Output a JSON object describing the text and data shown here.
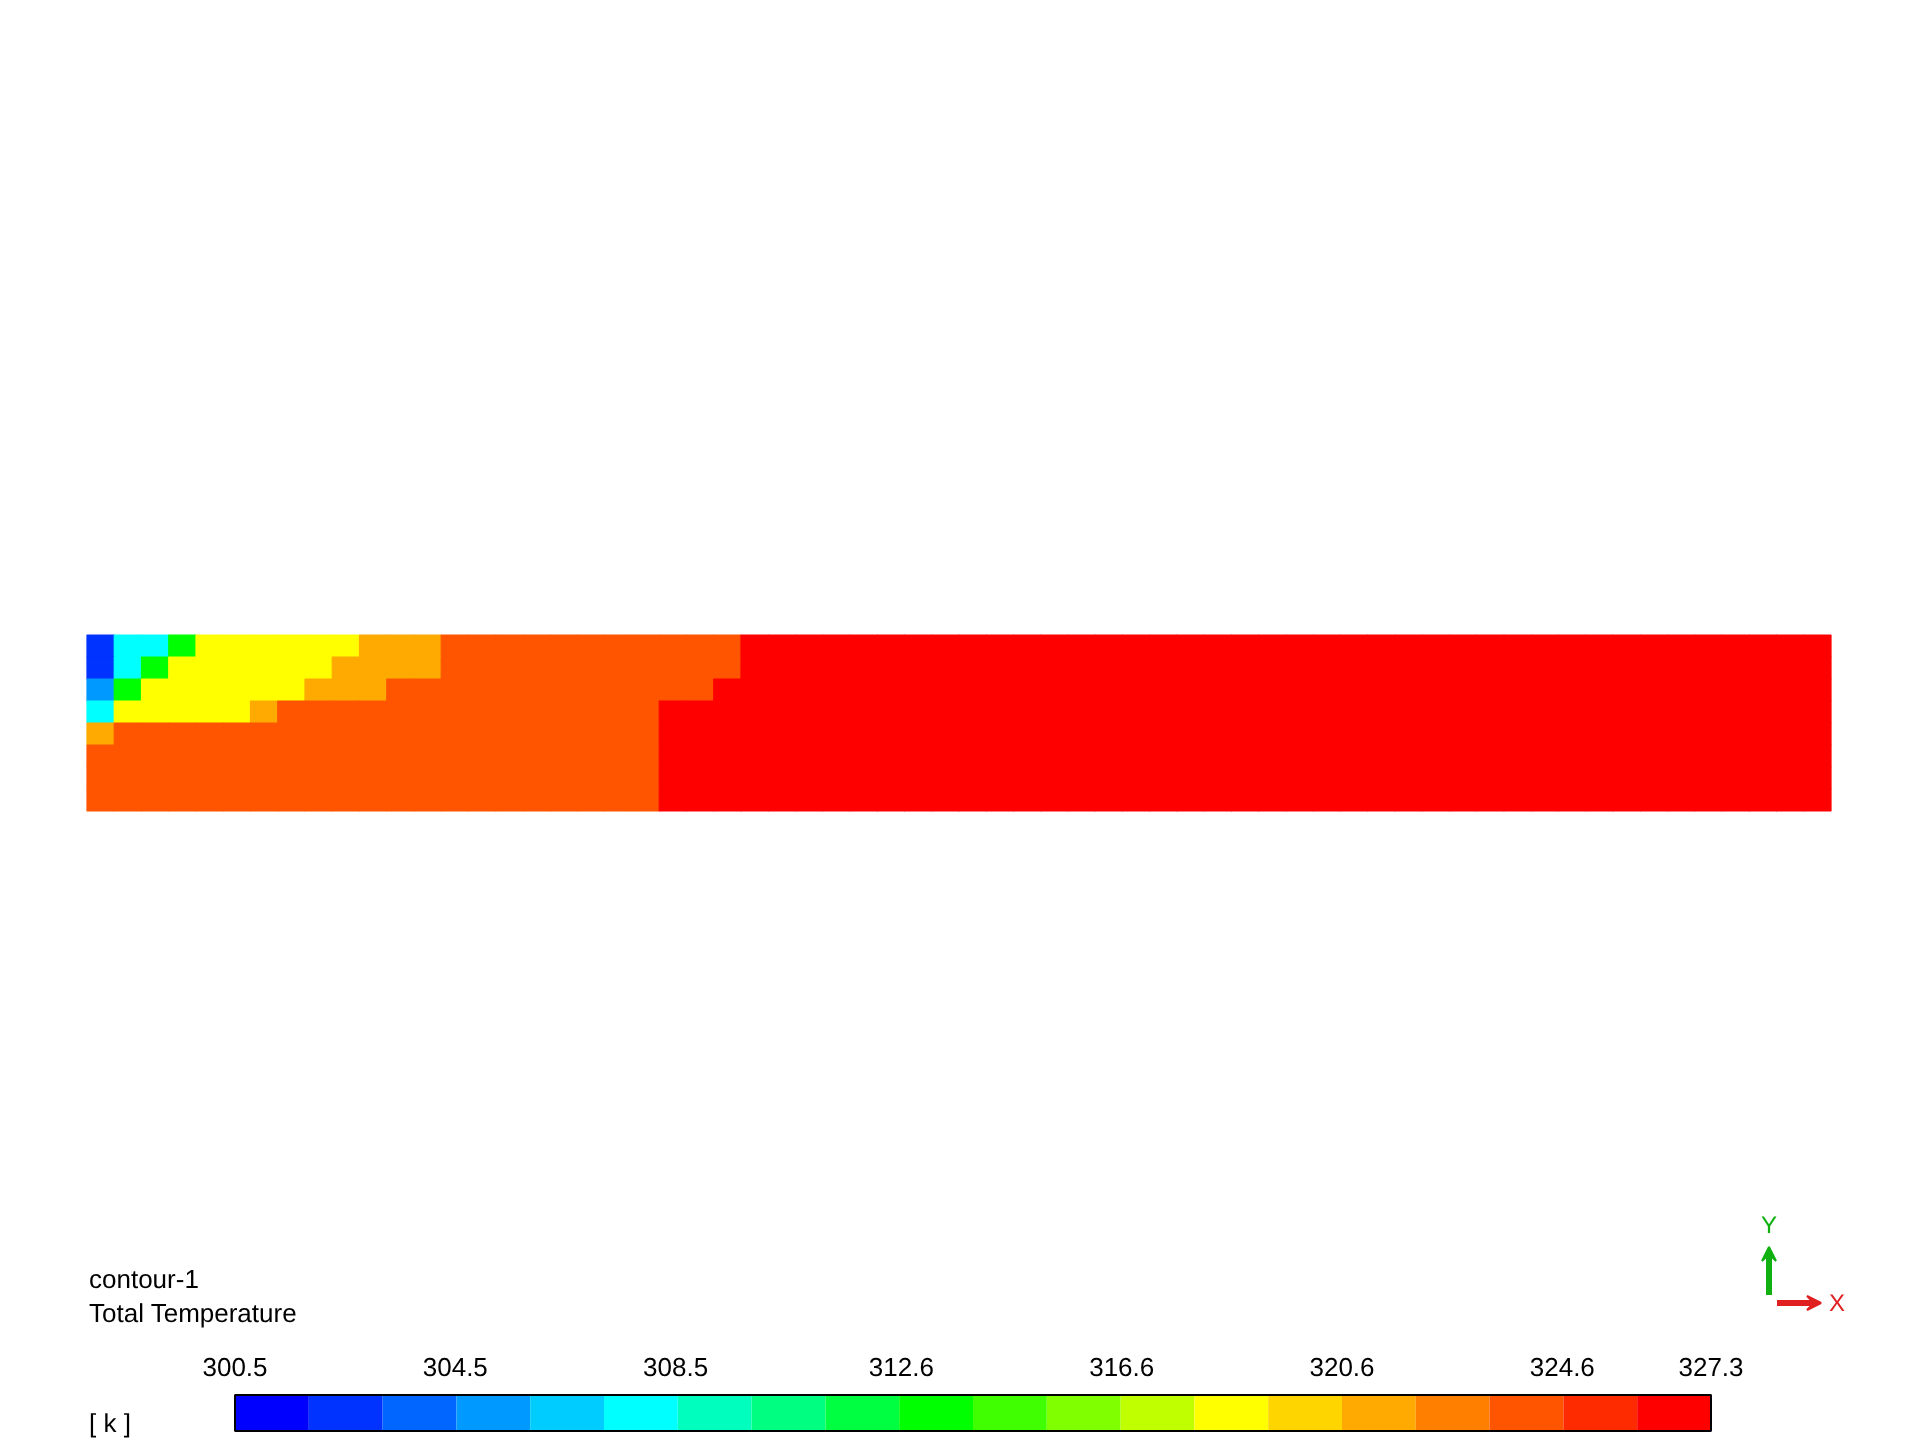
{
  "chart_data": {
    "type": "heatmap",
    "title": "contour-1",
    "subtitle": "Total Temperature",
    "clabel": "[ k ]",
    "annotations": [
      "X",
      "Y"
    ],
    "tick_labels": false,
    "categories": [
      null,
      null,
      null,
      null,
      null,
      null,
      null,
      null,
      null,
      null,
      null,
      null,
      null,
      null,
      null,
      null,
      null,
      null,
      null,
      null,
      null,
      null,
      null,
      null,
      null,
      null,
      null,
      null,
      null,
      null,
      null,
      null,
      null,
      null,
      null,
      null,
      null,
      null,
      null,
      null,
      null,
      null,
      null,
      null,
      null,
      null,
      null,
      null,
      null,
      null,
      null,
      null,
      null,
      null,
      null,
      null,
      null,
      null,
      null,
      null,
      null,
      null,
      null,
      null
    ],
    "y_categories": [
      null,
      null,
      null,
      null,
      null,
      null,
      null,
      null
    ],
    "cells": [
      [
        302.5,
        307.9,
        307.9,
        313.2,
        318.6,
        318.6,
        318.6,
        318.6,
        318.6,
        318.6,
        321.3,
        321.3,
        321.3,
        324.0,
        324.0,
        324.0,
        324.0,
        324.0,
        324.0,
        324.0,
        324.0,
        324.0,
        324.0,
        324.0,
        326.6,
        326.6,
        326.6,
        326.6,
        326.6,
        326.6,
        326.6,
        326.6,
        326.6,
        326.6,
        326.6,
        326.6,
        326.6,
        326.6,
        326.6,
        326.6,
        326.6,
        326.6,
        326.6,
        326.6,
        326.6,
        326.6,
        326.6,
        326.6,
        326.6,
        326.6,
        326.6,
        326.6,
        326.6,
        326.6,
        326.6,
        326.6,
        326.6,
        326.6,
        326.6,
        326.6,
        326.6,
        326.6,
        326.6,
        326.6
      ],
      [
        302.5,
        307.9,
        313.2,
        318.6,
        318.6,
        318.6,
        318.6,
        318.6,
        318.6,
        321.3,
        321.3,
        321.3,
        321.3,
        324.0,
        324.0,
        324.0,
        324.0,
        324.0,
        324.0,
        324.0,
        324.0,
        324.0,
        324.0,
        324.0,
        326.6,
        326.6,
        326.6,
        326.6,
        326.6,
        326.6,
        326.6,
        326.6,
        326.6,
        326.6,
        326.6,
        326.6,
        326.6,
        326.6,
        326.6,
        326.6,
        326.6,
        326.6,
        326.6,
        326.6,
        326.6,
        326.6,
        326.6,
        326.6,
        326.6,
        326.6,
        326.6,
        326.6,
        326.6,
        326.6,
        326.6,
        326.6,
        326.6,
        326.6,
        326.6,
        326.6,
        326.6,
        326.6,
        326.6,
        326.6
      ],
      [
        305.2,
        313.2,
        318.6,
        318.6,
        318.6,
        318.6,
        318.6,
        318.6,
        321.3,
        321.3,
        321.3,
        324.0,
        324.0,
        324.0,
        324.0,
        324.0,
        324.0,
        324.0,
        324.0,
        324.0,
        324.0,
        324.0,
        324.0,
        326.6,
        326.6,
        326.6,
        326.6,
        326.6,
        326.6,
        326.6,
        326.6,
        326.6,
        326.6,
        326.6,
        326.6,
        326.6,
        326.6,
        326.6,
        326.6,
        326.6,
        326.6,
        326.6,
        326.6,
        326.6,
        326.6,
        326.6,
        326.6,
        326.6,
        326.6,
        326.6,
        326.6,
        326.6,
        326.6,
        326.6,
        326.6,
        326.6,
        326.6,
        326.6,
        326.6,
        326.6,
        326.6,
        326.6,
        326.6,
        326.6
      ],
      [
        307.9,
        318.6,
        318.6,
        318.6,
        318.6,
        318.6,
        321.3,
        324.0,
        324.0,
        324.0,
        324.0,
        324.0,
        324.0,
        324.0,
        324.0,
        324.0,
        324.0,
        324.0,
        324.0,
        324.0,
        324.0,
        326.6,
        326.6,
        326.6,
        326.6,
        326.6,
        326.6,
        326.6,
        326.6,
        326.6,
        326.6,
        326.6,
        326.6,
        326.6,
        326.6,
        326.6,
        326.6,
        326.6,
        326.6,
        326.6,
        326.6,
        326.6,
        326.6,
        326.6,
        326.6,
        326.6,
        326.6,
        326.6,
        326.6,
        326.6,
        326.6,
        326.6,
        326.6,
        326.6,
        326.6,
        326.6,
        326.6,
        326.6,
        326.6,
        326.6,
        326.6,
        326.6,
        326.6,
        326.6
      ],
      [
        321.3,
        324.0,
        324.0,
        324.0,
        324.0,
        324.0,
        324.0,
        324.0,
        324.0,
        324.0,
        324.0,
        324.0,
        324.0,
        324.0,
        324.0,
        324.0,
        324.0,
        324.0,
        324.0,
        324.0,
        324.0,
        326.6,
        326.6,
        326.6,
        326.6,
        326.6,
        326.6,
        326.6,
        326.6,
        326.6,
        326.6,
        326.6,
        326.6,
        326.6,
        326.6,
        326.6,
        326.6,
        326.6,
        326.6,
        326.6,
        326.6,
        326.6,
        326.6,
        326.6,
        326.6,
        326.6,
        326.6,
        326.6,
        326.6,
        326.6,
        326.6,
        326.6,
        326.6,
        326.6,
        326.6,
        326.6,
        326.6,
        326.6,
        326.6,
        326.6,
        326.6,
        326.6,
        326.6,
        326.6
      ],
      [
        324.0,
        324.0,
        324.0,
        324.0,
        324.0,
        324.0,
        324.0,
        324.0,
        324.0,
        324.0,
        324.0,
        324.0,
        324.0,
        324.0,
        324.0,
        324.0,
        324.0,
        324.0,
        324.0,
        324.0,
        324.0,
        326.6,
        326.6,
        326.6,
        326.6,
        326.6,
        326.6,
        326.6,
        326.6,
        326.6,
        326.6,
        326.6,
        326.6,
        326.6,
        326.6,
        326.6,
        326.6,
        326.6,
        326.6,
        326.6,
        326.6,
        326.6,
        326.6,
        326.6,
        326.6,
        326.6,
        326.6,
        326.6,
        326.6,
        326.6,
        326.6,
        326.6,
        326.6,
        326.6,
        326.6,
        326.6,
        326.6,
        326.6,
        326.6,
        326.6,
        326.6,
        326.6,
        326.6,
        326.6
      ],
      [
        324.0,
        324.0,
        324.0,
        324.0,
        324.0,
        324.0,
        324.0,
        324.0,
        324.0,
        324.0,
        324.0,
        324.0,
        324.0,
        324.0,
        324.0,
        324.0,
        324.0,
        324.0,
        324.0,
        324.0,
        324.0,
        326.6,
        326.6,
        326.6,
        326.6,
        326.6,
        326.6,
        326.6,
        326.6,
        326.6,
        326.6,
        326.6,
        326.6,
        326.6,
        326.6,
        326.6,
        326.6,
        326.6,
        326.6,
        326.6,
        326.6,
        326.6,
        326.6,
        326.6,
        326.6,
        326.6,
        326.6,
        326.6,
        326.6,
        326.6,
        326.6,
        326.6,
        326.6,
        326.6,
        326.6,
        326.6,
        326.6,
        326.6,
        326.6,
        326.6,
        326.6,
        326.6,
        326.6,
        326.6
      ],
      [
        324.0,
        324.0,
        324.0,
        324.0,
        324.0,
        324.0,
        324.0,
        324.0,
        324.0,
        324.0,
        324.0,
        324.0,
        324.0,
        324.0,
        324.0,
        324.0,
        324.0,
        324.0,
        324.0,
        324.0,
        324.0,
        326.6,
        326.6,
        326.6,
        326.6,
        326.6,
        326.6,
        326.6,
        326.6,
        326.6,
        326.6,
        326.6,
        326.6,
        326.6,
        326.6,
        326.6,
        326.6,
        326.6,
        326.6,
        326.6,
        326.6,
        326.6,
        326.6,
        326.6,
        326.6,
        326.6,
        326.6,
        326.6,
        326.6,
        326.6,
        326.6,
        326.6,
        326.6,
        326.6,
        326.6,
        326.6,
        326.6,
        326.6,
        326.6,
        326.6,
        326.6,
        326.6,
        326.6,
        326.6
      ]
    ],
    "clim": [
      300.5,
      327.3
    ],
    "cticks": [
      300.5,
      304.5,
      308.5,
      312.6,
      316.6,
      320.6,
      324.6,
      327.3
    ],
    "colors": [
      "#0000ff",
      "#0033ff",
      "#0066ff",
      "#0099ff",
      "#00ccff",
      "#00ffff",
      "#00ffbf",
      "#00ff80",
      "#00ff40",
      "#00ff00",
      "#40ff00",
      "#80ff00",
      "#bfff00",
      "#ffff00",
      "#ffd500",
      "#ffaa00",
      "#ff8000",
      "#ff5500",
      "#ff2b00",
      "#ff0000"
    ]
  }
}
